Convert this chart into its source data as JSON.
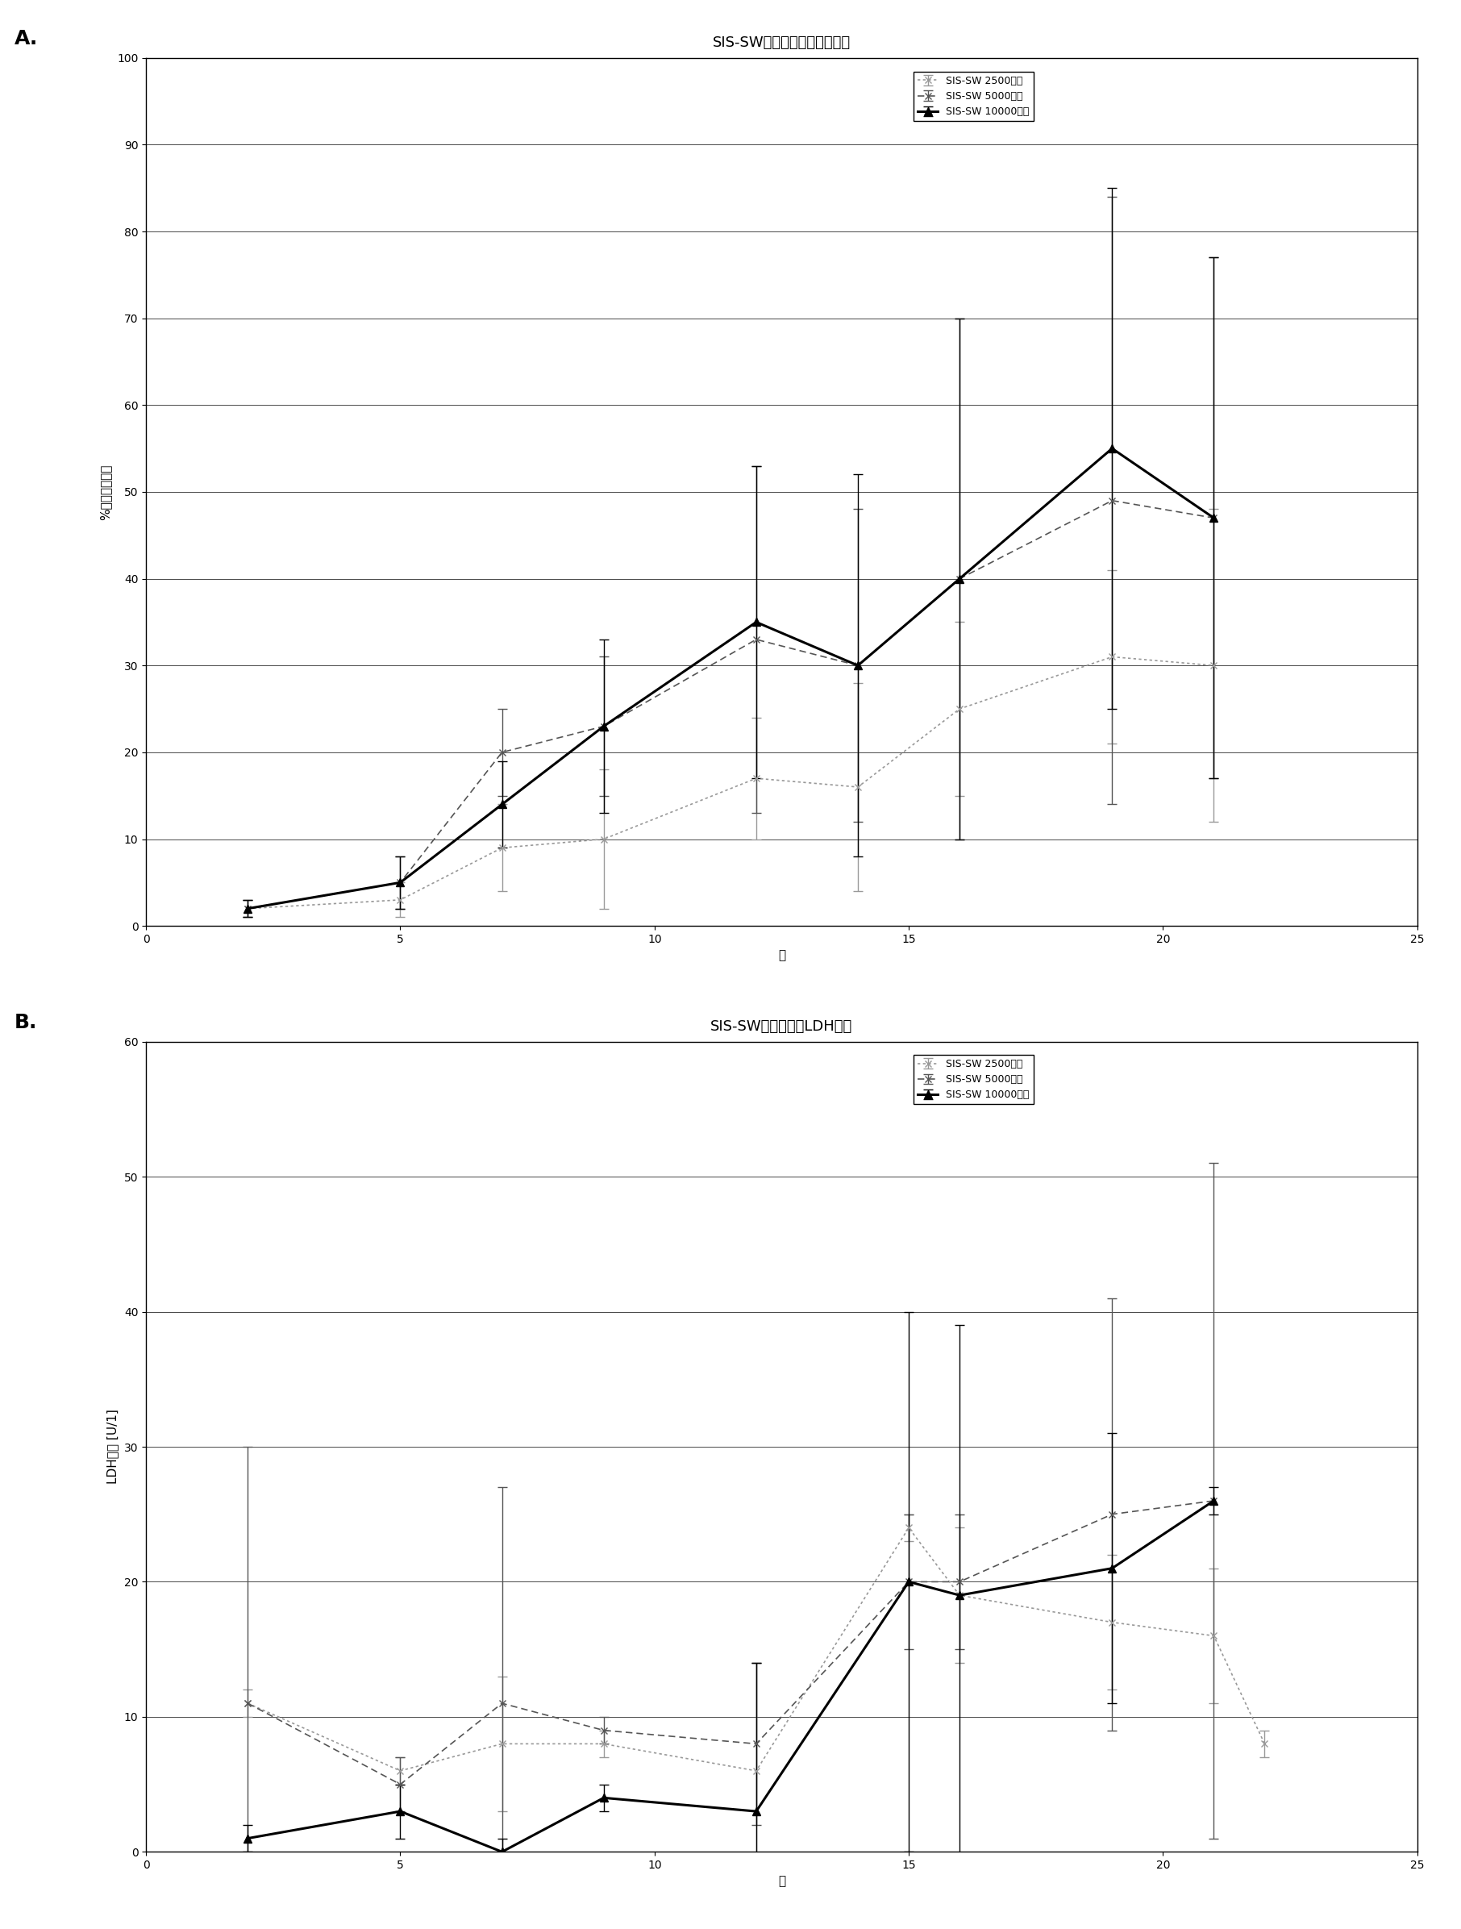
{
  "chart_A": {
    "title": "SIS-SW培养物中的葡萄糖消耗",
    "xlabel": "天",
    "ylabel": "%所消耗葡萄糖",
    "xlim": [
      0,
      25
    ],
    "ylim": [
      0,
      100
    ],
    "xticks": [
      0,
      5,
      10,
      15,
      20,
      25
    ],
    "yticks": [
      0,
      10,
      20,
      30,
      40,
      50,
      60,
      70,
      80,
      90,
      100
    ],
    "series": [
      {
        "label": "SIS-SW 2500接种",
        "x": [
          2,
          5,
          7,
          9,
          12,
          14,
          16,
          19,
          21
        ],
        "y": [
          2,
          3,
          9,
          10,
          17,
          16,
          25,
          31,
          30
        ],
        "yerr": [
          1,
          2,
          5,
          8,
          7,
          12,
          10,
          10,
          18
        ],
        "color": "#999999",
        "linestyle": "dotted",
        "marker": "x",
        "linewidth": 1.2,
        "markersize": 6
      },
      {
        "label": "SIS-SW 5000接种",
        "x": [
          2,
          5,
          7,
          9,
          12,
          14,
          16,
          19,
          21
        ],
        "y": [
          2,
          5,
          20,
          23,
          33,
          30,
          40,
          49,
          47
        ],
        "yerr": [
          1,
          3,
          5,
          8,
          20,
          18,
          30,
          35,
          30
        ],
        "color": "#555555",
        "linestyle": "dashed",
        "marker": "x",
        "linewidth": 1.2,
        "markersize": 6
      },
      {
        "label": "SIS-SW 10000接种",
        "x": [
          2,
          5,
          7,
          9,
          12,
          14,
          16,
          19,
          21
        ],
        "y": [
          2,
          5,
          14,
          23,
          35,
          30,
          40,
          55,
          47
        ],
        "yerr": [
          1,
          3,
          5,
          10,
          18,
          22,
          30,
          30,
          30
        ],
        "color": "#000000",
        "linestyle": "solid",
        "marker": "^",
        "linewidth": 2.2,
        "markersize": 7
      }
    ]
  },
  "chart_B": {
    "title": "SIS-SW培养物中的LDH释放",
    "xlabel": "天",
    "ylabel": "LDH释放 [U/1]",
    "xlim": [
      0,
      25
    ],
    "ylim": [
      0,
      60
    ],
    "xticks": [
      0,
      5,
      10,
      15,
      20,
      25
    ],
    "yticks": [
      0,
      10,
      20,
      30,
      40,
      50,
      60
    ],
    "series": [
      {
        "label": "SIS-SW 2500接种",
        "x": [
          2,
          5,
          7,
          9,
          12,
          15,
          16,
          19,
          21,
          22
        ],
        "y": [
          11,
          6,
          8,
          8,
          6,
          24,
          19,
          17,
          16,
          8
        ],
        "yerr": [
          1,
          1,
          5,
          1,
          8,
          1,
          5,
          5,
          5,
          1
        ],
        "color": "#999999",
        "linestyle": "dotted",
        "marker": "x",
        "linewidth": 1.2,
        "markersize": 6
      },
      {
        "label": "SIS-SW 5000接种",
        "x": [
          2,
          5,
          7,
          9,
          12,
          15,
          16,
          19,
          21
        ],
        "y": [
          11,
          5,
          11,
          9,
          8,
          20,
          20,
          25,
          26
        ],
        "yerr": [
          19,
          2,
          16,
          1,
          6,
          5,
          5,
          16,
          25
        ],
        "color": "#555555",
        "linestyle": "dashed",
        "marker": "x",
        "linewidth": 1.2,
        "markersize": 6
      },
      {
        "label": "SIS-SW 10000接种",
        "x": [
          2,
          5,
          7,
          9,
          12,
          15,
          16,
          19,
          21
        ],
        "y": [
          1,
          3,
          0,
          4,
          3,
          20,
          19,
          21,
          26
        ],
        "yerr": [
          1,
          2,
          1,
          1,
          11,
          20,
          20,
          10,
          1
        ],
        "color": "#000000",
        "linestyle": "solid",
        "marker": "^",
        "linewidth": 2.2,
        "markersize": 7
      }
    ]
  },
  "background_color": "#ffffff",
  "panel_bg": "#ffffff",
  "title_fontsize": 13,
  "label_fontsize": 11,
  "tick_fontsize": 10,
  "legend_fontsize": 9
}
